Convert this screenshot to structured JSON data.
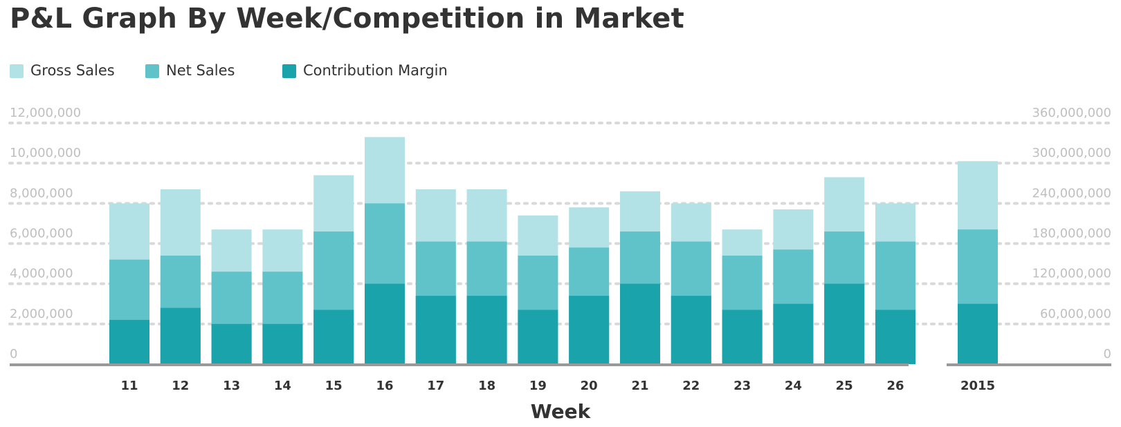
{
  "chart_data": {
    "type": "bar",
    "stacked": false,
    "overlay": true,
    "title": "P&L Graph By Week/Competition in Market",
    "xlabel": "Week",
    "ylabel": "",
    "y2label": "",
    "ylim": [
      0,
      12000000
    ],
    "y2lim": [
      0,
      360000000
    ],
    "left_ticks": [
      "0",
      "2,000,000",
      "4,000,000",
      "6,000,000",
      "8,000,000",
      "10,000,000",
      "12,000,000"
    ],
    "right_ticks": [
      "0",
      "60,000,000",
      "120,000,000",
      "180,000,000",
      "240,000,000",
      "300,000,000",
      "360,000,000"
    ],
    "grid": true,
    "legend_position": "top-left",
    "categories": [
      "11",
      "12",
      "13",
      "14",
      "15",
      "16",
      "17",
      "18",
      "19",
      "20",
      "21",
      "22",
      "23",
      "24",
      "25",
      "26",
      "2015"
    ],
    "series": [
      {
        "name": "Gross Sales",
        "color": "#b2e2e5",
        "values": [
          8000000,
          8700000,
          6700000,
          6700000,
          9400000,
          11300000,
          8700000,
          8700000,
          7400000,
          7800000,
          8600000,
          8000000,
          6700000,
          7700000,
          9300000,
          8000000,
          10100000
        ]
      },
      {
        "name": "Net Sales",
        "color": "#5fc3c9",
        "values": [
          5200000,
          5400000,
          4600000,
          4600000,
          6600000,
          8000000,
          6100000,
          6100000,
          5400000,
          5800000,
          6600000,
          6100000,
          5400000,
          5700000,
          6600000,
          6100000,
          6700000
        ]
      },
      {
        "name": "Contribution Margin",
        "color": "#1ba3ac",
        "values": [
          2200000,
          2800000,
          2000000,
          2000000,
          2700000,
          4000000,
          3400000,
          3400000,
          2700000,
          3400000,
          4000000,
          3400000,
          2700000,
          3000000,
          4000000,
          2700000,
          3000000
        ]
      }
    ],
    "secondary_axis_categories": [
      "2015"
    ]
  },
  "colors": {
    "grid": "#d9d9d9",
    "axis": "#999999",
    "tick_text": "#bfbfbf",
    "label_text": "#333333"
  }
}
